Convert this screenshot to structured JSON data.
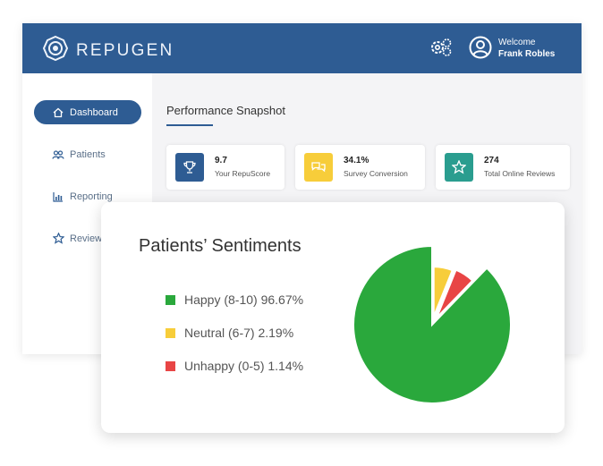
{
  "app": {
    "logo_text": "REPUGEN",
    "welcome_label": "Welcome",
    "user_name": "Frank Robles"
  },
  "sidebar": {
    "items": [
      {
        "label": "Dashboard",
        "icon": "home-icon",
        "active": true
      },
      {
        "label": "Patients",
        "icon": "users-icon",
        "active": false
      },
      {
        "label": "Reporting",
        "icon": "bar-chart-icon",
        "active": false
      },
      {
        "label": "Reviews",
        "icon": "star-icon",
        "active": false
      }
    ]
  },
  "main": {
    "section_title": "Performance Snapshot",
    "cards": [
      {
        "value": "9.7",
        "label": "Your RepuScore",
        "icon": "trophy-icon",
        "color": "#2e5c93"
      },
      {
        "value": "34.1%",
        "label": "Survey Conversion",
        "icon": "chat-icon",
        "color": "#f7cd3a"
      },
      {
        "value": "274",
        "label": "Total Online Reviews",
        "icon": "star-icon",
        "color": "#2a9d8f"
      }
    ]
  },
  "popup": {
    "title": "Patients’ Sentiments",
    "legend": [
      {
        "label": "Happy (8-10) 96.67%",
        "color": "#2aa83c"
      },
      {
        "label": "Neutral (6-7) 2.19%",
        "color": "#f7cd3a"
      },
      {
        "label": "Unhappy (0-5) 1.14%",
        "color": "#e84545"
      }
    ]
  },
  "chart_data": {
    "type": "pie",
    "title": "Patients’ Sentiments",
    "categories": [
      "Happy (8-10)",
      "Neutral (6-7)",
      "Unhappy (0-5)"
    ],
    "values": [
      96.67,
      2.19,
      1.14
    ],
    "colors": [
      "#2aa83c",
      "#f7cd3a",
      "#e84545"
    ],
    "legend": "left"
  }
}
